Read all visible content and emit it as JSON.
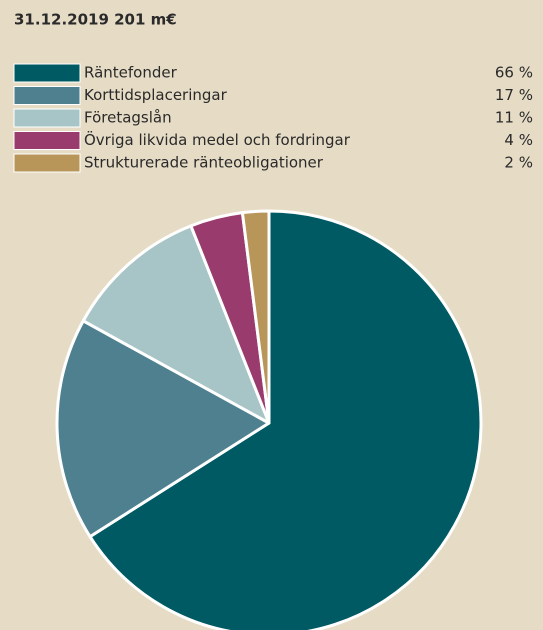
{
  "chart_data": {
    "type": "pie",
    "title": "31.12.2019 201 m€",
    "categories": [
      "Räntefonder",
      "Korttidsplaceringar",
      "Företagslån",
      "Övriga likvida medel och fordringar",
      "Strukturerade ränteobligationer"
    ],
    "values": [
      66,
      17,
      11,
      4,
      2
    ],
    "value_labels": [
      "66 %",
      "17 %",
      "11 %",
      "4 %",
      "2 %"
    ],
    "colors": [
      "#005a64",
      "#4e8090",
      "#a7c4c6",
      "#9a3b6e",
      "#b8965a"
    ]
  }
}
